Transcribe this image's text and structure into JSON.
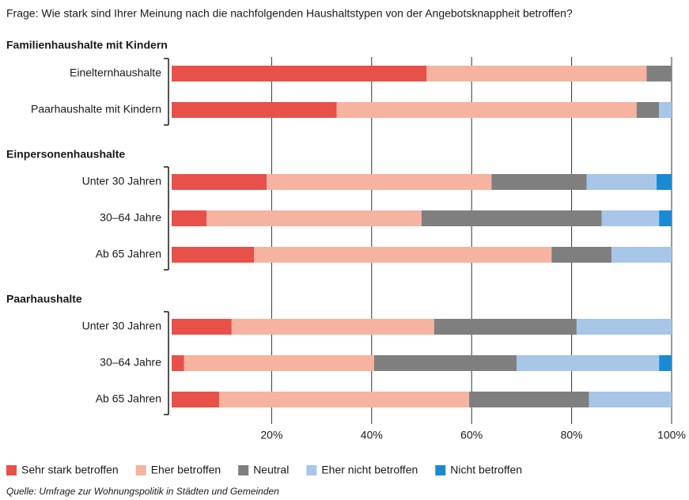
{
  "chart_data": {
    "type": "stacked-bar-horizontal",
    "title": "Frage: Wie stark sind Ihrer Meinung nach die nachfolgenden Haushaltstypen von der Angebotsknappheit betroffen?",
    "groups": [
      {
        "name": "Familienhaushalte mit Kindern",
        "categories": [
          "Einelternhaushalte",
          "Paarhaushalte mit Kindern"
        ]
      },
      {
        "name": "Einpersonenhaushalte",
        "categories": [
          "Unter 30 Jahren",
          "30–64 Jahre",
          "Ab 65 Jahren"
        ]
      },
      {
        "name": "Paarhaushalte",
        "categories": [
          "Unter 30 Jahren",
          "30–64 Jahre",
          "Ab 65 Jahren"
        ]
      }
    ],
    "series": [
      {
        "name": "Sehr stark betroffen",
        "color": "#e8504a",
        "values": [
          51,
          33,
          19,
          7,
          16.5,
          12,
          2.5,
          9.5
        ]
      },
      {
        "name": "Eher betroffen",
        "color": "#f5b3a0",
        "values": [
          44,
          60,
          45,
          43,
          59.5,
          40.5,
          38,
          50
        ]
      },
      {
        "name": "Neutral",
        "color": "#7f7f7f",
        "values": [
          5,
          4.5,
          19,
          36,
          12,
          28.5,
          28.5,
          24
        ]
      },
      {
        "name": "Eher nicht betroffen",
        "color": "#a7c6e8",
        "values": [
          null,
          2.5,
          14,
          11.5,
          12,
          19,
          28.5,
          16.5
        ]
      },
      {
        "name": "Nicht betroffen",
        "color": "#1a8ad4",
        "values": [
          null,
          null,
          3,
          2.5,
          null,
          null,
          2.5,
          null
        ]
      }
    ],
    "xlim": [
      0,
      100
    ],
    "xticks": [
      {
        "value": 20,
        "label": "20%"
      },
      {
        "value": 40,
        "label": "40%"
      },
      {
        "value": 60,
        "label": "60%"
      },
      {
        "value": 80,
        "label": "80%"
      },
      {
        "value": 100,
        "label": "100%"
      }
    ],
    "grid": true,
    "legend": "bottom",
    "source": "Quelle: Umfrage zur Wohnungspolitik in Städten und Gemeinden"
  }
}
